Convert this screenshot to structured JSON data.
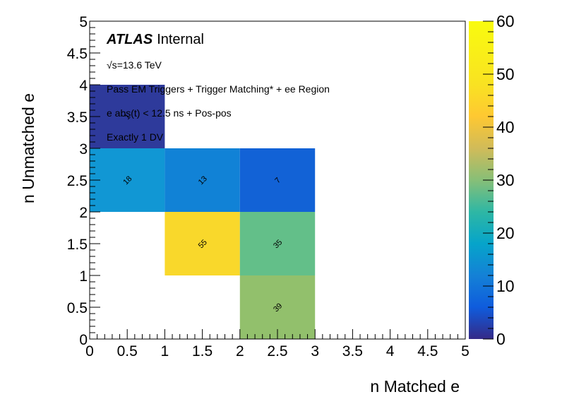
{
  "chart_data": {
    "type": "heatmap",
    "xlabel": "n Matched e",
    "ylabel": "n Unmatched e",
    "xlim": [
      0,
      5
    ],
    "ylim": [
      0,
      5
    ],
    "xticks": [
      "0",
      "0.5",
      "1",
      "1.5",
      "2",
      "2.5",
      "3",
      "3.5",
      "4",
      "4.5",
      "5"
    ],
    "yticks": [
      "0",
      "0.5",
      "1",
      "1.5",
      "2",
      "2.5",
      "3",
      "3.5",
      "4",
      "4.5",
      "5"
    ],
    "zlim": [
      0,
      60
    ],
    "zticks": [
      "0",
      "10",
      "20",
      "30",
      "40",
      "50",
      "60"
    ],
    "cells": [
      {
        "x": 0,
        "y": 3,
        "value": 1
      },
      {
        "x": 0,
        "y": 2,
        "value": 18
      },
      {
        "x": 1,
        "y": 2,
        "value": 13
      },
      {
        "x": 2,
        "y": 2,
        "value": 7
      },
      {
        "x": 1,
        "y": 1,
        "value": 55
      },
      {
        "x": 2,
        "y": 1,
        "value": 35
      },
      {
        "x": 2,
        "y": 0,
        "value": 39
      }
    ],
    "colors": {
      "1": "#2e3a9b",
      "18": "#1197d4",
      "13": "#1182d6",
      "7": "#1262d6",
      "55": "#f9d82b",
      "35": "#63bf89",
      "39": "#92c06c"
    },
    "grid": false
  },
  "annotations": {
    "atlas": "ATLAS",
    "internal": "Internal",
    "energy_sqrt": "√s",
    "energy_rest": "=13.6 TeV",
    "line1": "Pass EM Triggers + Trigger Matching* + ee Region",
    "line2": "e abs(t) < 12.5 ns + Pos-pos",
    "line3": "Exactly 1 DV"
  }
}
